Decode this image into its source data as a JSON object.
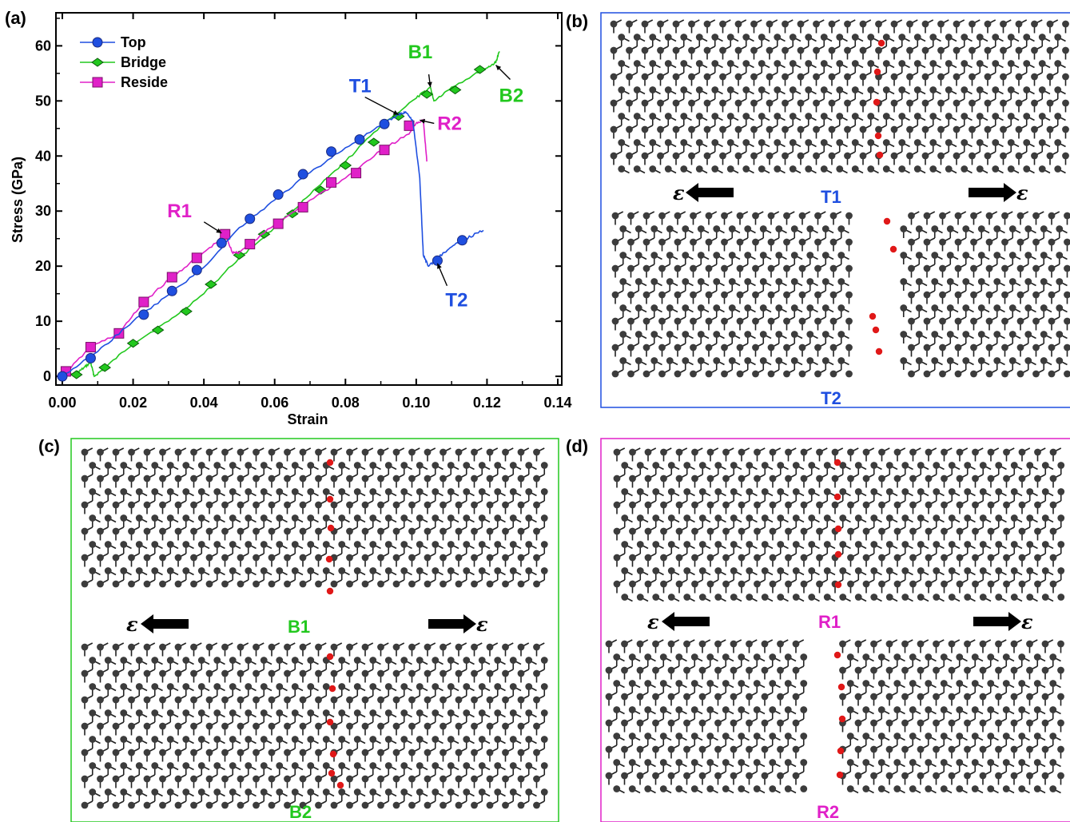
{
  "panels": {
    "a": "(a)",
    "b": "(b)",
    "c": "(c)",
    "d": "(d)"
  },
  "colors": {
    "top": "#1f4fe0",
    "bridge": "#22c81e",
    "reside": "#e020c8",
    "atom": "#3c3c3c",
    "vacancy_atom": "#e01818"
  },
  "chart_data": {
    "type": "line",
    "title": "",
    "xlabel": "Strain",
    "ylabel": "Stress (GPa)",
    "xlim": [
      0.0,
      0.14
    ],
    "ylim": [
      -1,
      66
    ],
    "xticks": [
      "0.00",
      "0.02",
      "0.04",
      "0.06",
      "0.08",
      "0.10",
      "0.12",
      "0.14"
    ],
    "yticks": [
      "0",
      "10",
      "20",
      "30",
      "40",
      "50",
      "60"
    ],
    "legend_position": "top-left",
    "series": [
      {
        "name": "Top",
        "marker": "circle",
        "x": [
          0.0,
          0.01,
          0.02,
          0.03,
          0.04,
          0.05,
          0.06,
          0.07,
          0.08,
          0.09,
          0.095,
          0.097,
          0.099,
          0.101,
          0.102,
          0.1035,
          0.106,
          0.11,
          0.114,
          0.119
        ],
        "y": [
          0,
          4.5,
          10.0,
          14.8,
          19.8,
          27.0,
          32.0,
          37.0,
          41.5,
          45.5,
          47.5,
          48.0,
          46.5,
          36.0,
          22.0,
          20.0,
          21.5,
          23.5,
          25.0,
          26.5
        ],
        "markers_x": [
          0.0,
          0.008,
          0.023,
          0.031,
          0.038,
          0.045,
          0.053,
          0.061,
          0.068,
          0.076,
          0.084,
          0.091,
          0.106,
          0.113
        ],
        "markers_y": [
          0,
          3.3,
          11.2,
          15.5,
          19.3,
          24.2,
          28.6,
          33.0,
          36.7,
          40.8,
          43.0,
          45.8,
          21.0,
          24.7
        ]
      },
      {
        "name": "Bridge",
        "marker": "diamond",
        "x": [
          0.0,
          0.004,
          0.006,
          0.008,
          0.009,
          0.012,
          0.02,
          0.03,
          0.04,
          0.05,
          0.06,
          0.07,
          0.08,
          0.09,
          0.1,
          0.104,
          0.105,
          0.11,
          0.12,
          0.1225,
          0.1235
        ],
        "y": [
          0,
          0.5,
          1.5,
          2.5,
          0.0,
          1.5,
          6.0,
          10.0,
          15.0,
          21.5,
          27.0,
          33.0,
          39.0,
          45.5,
          50.5,
          52.5,
          50.0,
          52.5,
          56.0,
          57.0,
          59.0
        ],
        "markers_x": [
          0.004,
          0.012,
          0.02,
          0.027,
          0.035,
          0.042,
          0.05,
          0.057,
          0.065,
          0.073,
          0.08,
          0.088,
          0.095,
          0.103,
          0.111,
          0.118
        ],
        "markers_y": [
          0.3,
          1.6,
          6.0,
          8.4,
          11.8,
          16.7,
          22.0,
          25.8,
          29.5,
          33.8,
          38.3,
          42.5,
          47.2,
          51.2,
          52.0,
          55.7
        ]
      },
      {
        "name": "Reside",
        "marker": "square",
        "x": [
          0.0,
          0.008,
          0.016,
          0.023,
          0.031,
          0.038,
          0.044,
          0.046,
          0.048,
          0.05,
          0.06,
          0.07,
          0.08,
          0.09,
          0.098,
          0.1,
          0.102,
          0.103
        ],
        "y": [
          0,
          5.3,
          7.8,
          13.5,
          18.0,
          21.5,
          24.5,
          26.0,
          22.5,
          22.5,
          27.5,
          32.0,
          36.0,
          41.0,
          44.0,
          46.0,
          46.5,
          39.0
        ],
        "markers_x": [
          0.001,
          0.008,
          0.016,
          0.023,
          0.031,
          0.038,
          0.046,
          0.053,
          0.061,
          0.068,
          0.076,
          0.083,
          0.091,
          0.098
        ],
        "markers_y": [
          0.9,
          5.3,
          7.8,
          13.5,
          18.0,
          21.5,
          25.8,
          24.0,
          27.7,
          30.7,
          35.2,
          36.9,
          41.1,
          45.5
        ]
      }
    ],
    "annotations": [
      {
        "label": "T1",
        "series": "Top",
        "x": 0.095,
        "y": 47.5
      },
      {
        "label": "T2",
        "series": "Top",
        "x": 0.106,
        "y": 20.5
      },
      {
        "label": "B1",
        "series": "Bridge",
        "x": 0.104,
        "y": 52.5
      },
      {
        "label": "B2",
        "series": "Bridge",
        "x": 0.1225,
        "y": 56.5
      },
      {
        "label": "R1",
        "series": "Reside",
        "x": 0.045,
        "y": 26.0
      },
      {
        "label": "R2",
        "series": "Reside",
        "x": 0.101,
        "y": 46.5
      }
    ]
  },
  "figure_panels": {
    "b": {
      "captions": [
        "T1",
        "T2"
      ],
      "strain_symbol": "ε"
    },
    "c": {
      "captions": [
        "B1",
        "B2"
      ],
      "strain_symbol": "ε"
    },
    "d": {
      "captions": [
        "R1",
        "R2"
      ],
      "strain_symbol": "ε"
    }
  }
}
